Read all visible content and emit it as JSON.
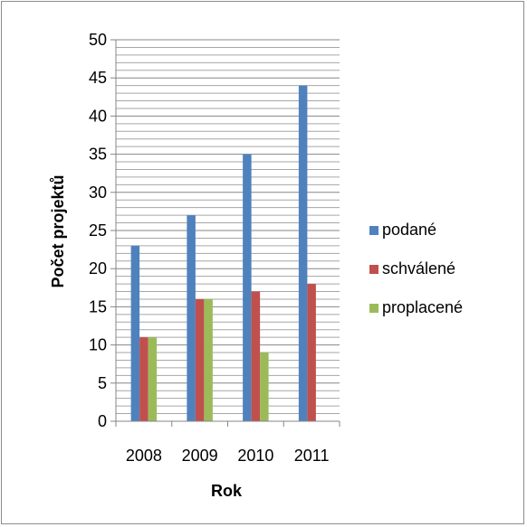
{
  "chart_data": {
    "type": "bar",
    "categories": [
      "2008",
      "2009",
      "2010",
      "2011"
    ],
    "series": [
      {
        "name": "podané",
        "values": [
          23,
          27,
          35,
          44
        ],
        "color": "#4F81BD"
      },
      {
        "name": "schválené",
        "values": [
          11,
          16,
          17,
          18
        ],
        "color": "#C0504D"
      },
      {
        "name": "proplacené",
        "values": [
          11,
          16,
          9,
          0
        ],
        "color": "#9BBB59"
      }
    ],
    "title": "",
    "xlabel": "Rok",
    "ylabel": "Počet projektů",
    "ylim": [
      0,
      50
    ],
    "yticks": [
      0,
      5,
      10,
      15,
      20,
      25,
      30,
      35,
      40,
      45,
      50
    ],
    "minor_grid_step": 1,
    "grid": true,
    "legend_position": "right"
  }
}
